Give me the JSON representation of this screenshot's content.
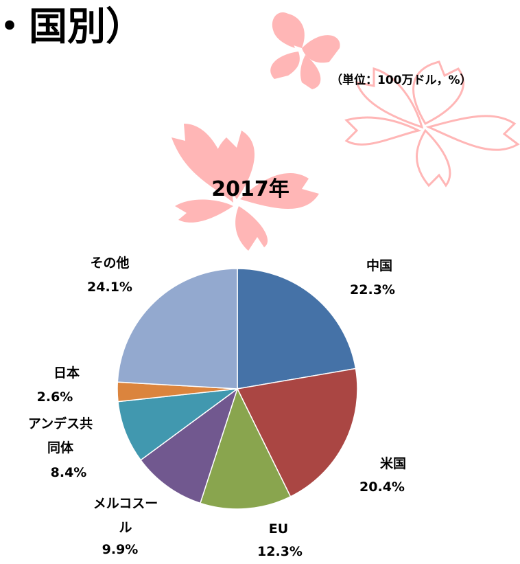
{
  "header": {
    "title": "・国別）",
    "unit": "（単位：100万ドル，%）"
  },
  "chart_data": {
    "type": "pie",
    "title": "2017年",
    "categories": [
      "中国",
      "米国",
      "EU",
      "メルコスール",
      "アンデス共同体",
      "日本",
      "その他"
    ],
    "values": [
      22.3,
      20.4,
      12.3,
      9.9,
      8.4,
      2.6,
      24.1
    ],
    "value_labels": [
      "22.3%",
      "20.4%",
      "12.3%",
      "9.9%",
      "8.4%",
      "2.6%",
      "24.1%"
    ],
    "colors": [
      "#4572a7",
      "#aa4643",
      "#89a54e",
      "#71588f",
      "#4198af",
      "#db843d",
      "#93a9cf"
    ]
  }
}
